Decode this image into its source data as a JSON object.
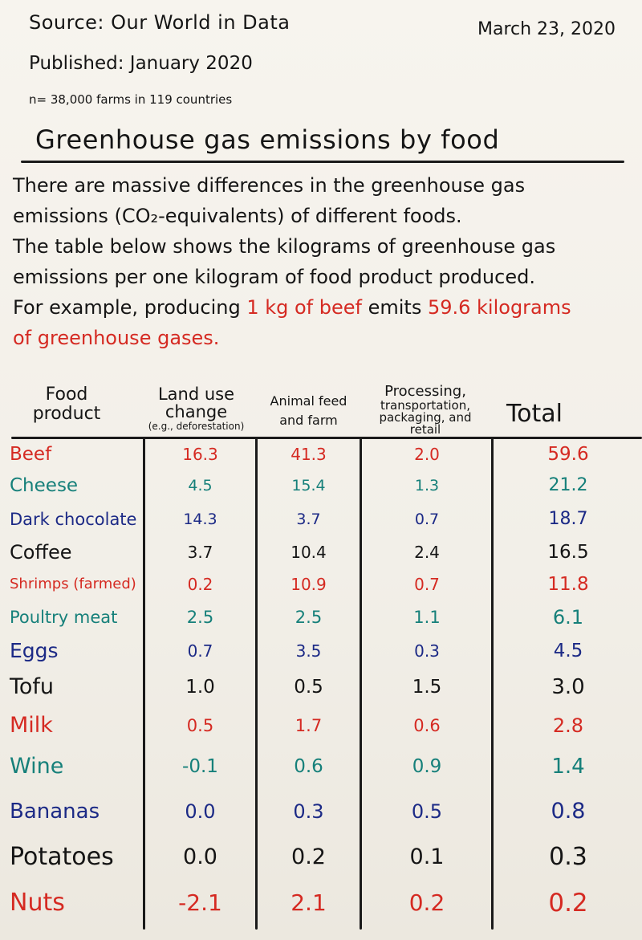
{
  "header": {
    "source": "Source: Our World in Data",
    "date": "March 23, 2020",
    "published": "Published: January 2020",
    "sample": "n= 38,000 farms in 119 countries"
  },
  "title": "Greenhouse gas emissions by food",
  "description": {
    "line1": "There are massive differences in the greenhouse gas",
    "line2": "emissions (CO₂-equivalents) of different foods.",
    "line3": "The table below shows the kilograms of greenhouse gas",
    "line4": "emissions per one kilogram of food product produced.",
    "line5_start": "For example, producing ",
    "line5_red1": "1 kg of beef",
    "line5_mid": " emits ",
    "line5_red2": "59.6 kilograms",
    "line6": "of greenhouse gases."
  },
  "table": {
    "headers": {
      "food_line1": "Food",
      "food_line2": "product",
      "land_line1": "Land use",
      "land_line2": "change",
      "land_note": "(e.g., deforestation)",
      "feed_line1": "Animal feed",
      "feed_line2": "and farm",
      "proc_line1": "Processing,",
      "proc_line2": "transportation,",
      "proc_line3": "packaging, and",
      "proc_line4": "retail",
      "total": "Total"
    },
    "rows": [
      {
        "food": "Beef",
        "land": "16.3",
        "feed": "41.3",
        "proc": "2.0",
        "total": "59.6",
        "color": "#d52a22"
      },
      {
        "food": "Cheese",
        "land": "4.5",
        "feed": "15.4",
        "proc": "1.3",
        "total": "21.2",
        "color": "#16807a"
      },
      {
        "food": "Dark chocolate",
        "land": "14.3",
        "feed": "3.7",
        "proc": "0.7",
        "total": "18.7",
        "color": "#1c2a86"
      },
      {
        "food": "Coffee",
        "land": "3.7",
        "feed": "10.4",
        "proc": "2.4",
        "total": "16.5",
        "color": "#151515"
      },
      {
        "food": "Shrimps (farmed)",
        "land": "0.2",
        "feed": "10.9",
        "proc": "0.7",
        "total": "11.8",
        "color": "#d52a22"
      },
      {
        "food": "Poultry meat",
        "land": "2.5",
        "feed": "2.5",
        "proc": "1.1",
        "total": "6.1",
        "color": "#16807a"
      },
      {
        "food": "Eggs",
        "land": "0.7",
        "feed": "3.5",
        "proc": "0.3",
        "total": "4.5",
        "color": "#1c2a86"
      },
      {
        "food": "Tofu",
        "land": "1.0",
        "feed": "0.5",
        "proc": "1.5",
        "total": "3.0",
        "color": "#151515"
      },
      {
        "food": "Milk",
        "land": "0.5",
        "feed": "1.7",
        "proc": "0.6",
        "total": "2.8",
        "color": "#d52a22"
      },
      {
        "food": "Wine",
        "land": "-0.1",
        "feed": "0.6",
        "proc": "0.9",
        "total": "1.4",
        "color": "#16807a"
      },
      {
        "food": "Bananas",
        "land": "0.0",
        "feed": "0.3",
        "proc": "0.5",
        "total": "0.8",
        "color": "#1c2a86"
      },
      {
        "food": "Potatoes",
        "land": "0.0",
        "feed": "0.2",
        "proc": "0.1",
        "total": "0.3",
        "color": "#151515"
      },
      {
        "food": "Nuts",
        "land": "-2.1",
        "feed": "2.1",
        "proc": "0.2",
        "total": "0.2",
        "color": "#d52a22"
      }
    ]
  }
}
